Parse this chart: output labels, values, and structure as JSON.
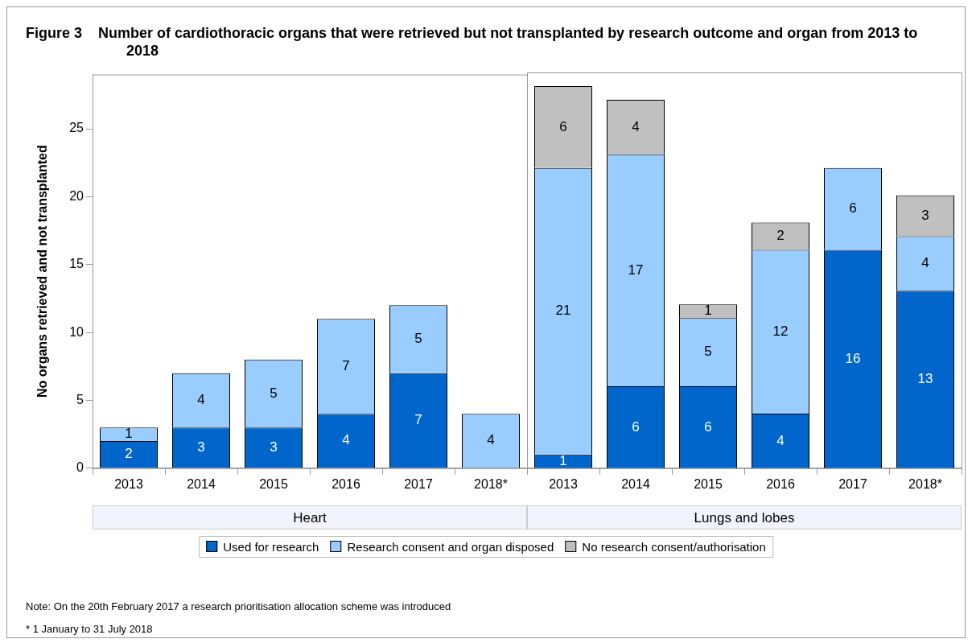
{
  "chart_data": [
    {
      "type": "bar",
      "title": "Figure 3    Number of cardiothoracic organs that were retrieved but not transplanted by research outcome and organ from 2013 to 2018",
      "ylabel": "No organs retrieved and not transplanted",
      "xlabel": "Heart",
      "categories": [
        "2013",
        "2014",
        "2015",
        "2016",
        "2017",
        "2018*"
      ],
      "stacked": true,
      "data_labels": true,
      "legend": "bottom",
      "ylim": [
        0,
        29
      ],
      "yticks": [
        0,
        5,
        10,
        15,
        20,
        25
      ],
      "series": [
        {
          "name": "Used for research",
          "color": "#0066cc",
          "values": [
            2,
            3,
            3,
            4,
            7,
            null
          ]
        },
        {
          "name": "Research consent and organ disposed",
          "color": "#99ccff",
          "values": [
            1,
            4,
            5,
            7,
            5,
            4
          ]
        },
        {
          "name": "No research consent/authorisation",
          "color": "#c0c0c0",
          "values": [
            null,
            null,
            null,
            null,
            null,
            null
          ]
        }
      ],
      "annotations": [
        "Note: On the 20th February 2017 a research prioritisation allocation scheme was introduced",
        "* 1 January to 31 July 2018"
      ]
    },
    {
      "type": "bar",
      "xlabel": "Lungs and lobes",
      "categories": [
        "2013",
        "2014",
        "2015",
        "2016",
        "2017",
        "2018*"
      ],
      "stacked": true,
      "data_labels": true,
      "tick_labels": "x",
      "ylim": [
        0,
        29
      ],
      "yticks": [
        0,
        5,
        10,
        15,
        20,
        25
      ],
      "series": [
        {
          "color": "#0066cc",
          "values": [
            1,
            6,
            6,
            4,
            16,
            13
          ]
        },
        {
          "color": "#99ccff",
          "values": [
            21,
            17,
            5,
            12,
            6,
            4
          ]
        },
        {
          "color": "#c0c0c0",
          "values": [
            6,
            4,
            1,
            2,
            null,
            3
          ]
        }
      ]
    }
  ]
}
